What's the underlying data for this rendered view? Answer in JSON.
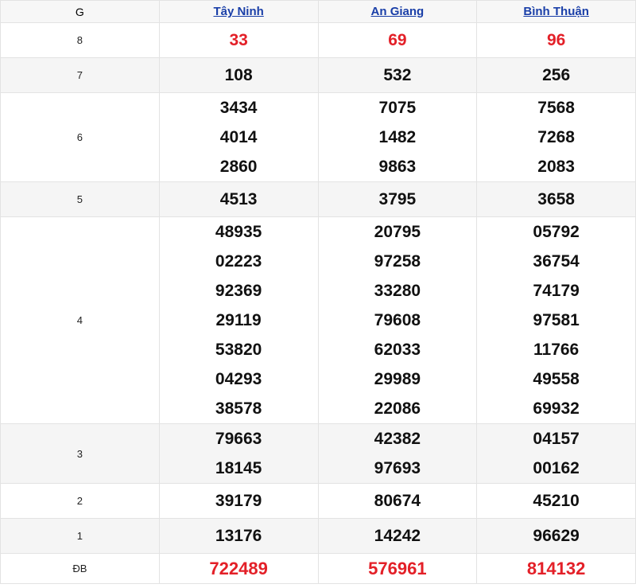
{
  "header": {
    "prize": "G",
    "provinces": [
      "Tây Ninh",
      "An Giang",
      "Bình Thuận"
    ]
  },
  "colors": {
    "highlight": "#e32028",
    "link": "#1a3fa8"
  },
  "rows": [
    {
      "prize": "8",
      "red": true,
      "values": [
        [
          "33"
        ],
        [
          "69"
        ],
        [
          "96"
        ]
      ]
    },
    {
      "prize": "7",
      "values": [
        [
          "108"
        ],
        [
          "532"
        ],
        [
          "256"
        ]
      ]
    },
    {
      "prize": "6",
      "values": [
        [
          "3434",
          "4014",
          "2860"
        ],
        [
          "7075",
          "1482",
          "9863"
        ],
        [
          "7568",
          "7268",
          "2083"
        ]
      ]
    },
    {
      "prize": "5",
      "values": [
        [
          "4513"
        ],
        [
          "3795"
        ],
        [
          "3658"
        ]
      ]
    },
    {
      "prize": "4",
      "values": [
        [
          "48935",
          "02223",
          "92369",
          "29119",
          "53820",
          "04293",
          "38578"
        ],
        [
          "20795",
          "97258",
          "33280",
          "79608",
          "62033",
          "29989",
          "22086"
        ],
        [
          "05792",
          "36754",
          "74179",
          "97581",
          "11766",
          "49558",
          "69932"
        ]
      ]
    },
    {
      "prize": "3",
      "values": [
        [
          "79663",
          "18145"
        ],
        [
          "42382",
          "97693"
        ],
        [
          "04157",
          "00162"
        ]
      ]
    },
    {
      "prize": "2",
      "values": [
        [
          "39179"
        ],
        [
          "80674"
        ],
        [
          "45210"
        ]
      ]
    },
    {
      "prize": "1",
      "values": [
        [
          "13176"
        ],
        [
          "14242"
        ],
        [
          "96629"
        ]
      ]
    },
    {
      "prize": "ĐB",
      "red": true,
      "values": [
        [
          "722489"
        ],
        [
          "576961"
        ],
        [
          "814132"
        ]
      ]
    }
  ]
}
